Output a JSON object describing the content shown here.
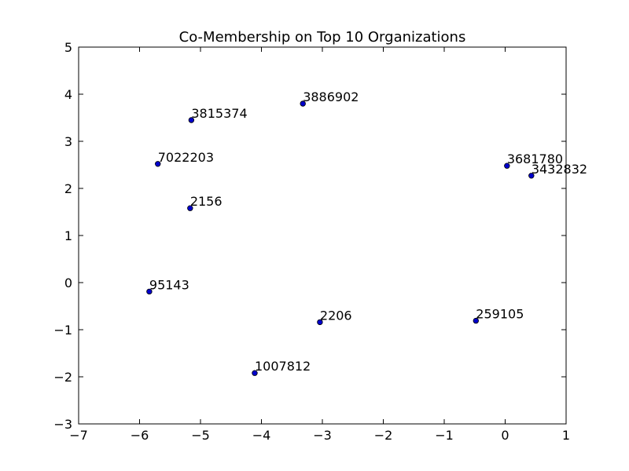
{
  "chart_data": {
    "type": "scatter",
    "title": "Co-Membership on Top 10 Organizations",
    "xlabel": "",
    "ylabel": "",
    "xlim": [
      -7,
      1
    ],
    "ylim": [
      -3,
      5
    ],
    "x_ticks": [
      -7,
      -6,
      -5,
      -4,
      -3,
      -2,
      -1,
      0,
      1
    ],
    "y_ticks": [
      -3,
      -2,
      -1,
      0,
      1,
      2,
      3,
      4,
      5
    ],
    "x_tick_labels": [
      "−7",
      "−6",
      "−5",
      "−4",
      "−3",
      "−2",
      "−1",
      "0",
      "1"
    ],
    "y_tick_labels": [
      "−3",
      "−2",
      "−1",
      "0",
      "1",
      "2",
      "3",
      "4",
      "5"
    ],
    "grid": false,
    "marker_color": "#0000cc",
    "points": [
      {
        "label": "3886902",
        "x": -3.32,
        "y": 3.8
      },
      {
        "label": "3815374",
        "x": -5.15,
        "y": 3.45
      },
      {
        "label": "7022203",
        "x": -5.7,
        "y": 2.52
      },
      {
        "label": "2156",
        "x": -5.17,
        "y": 1.58
      },
      {
        "label": "3681780",
        "x": 0.03,
        "y": 2.48
      },
      {
        "label": "3432832",
        "x": 0.43,
        "y": 2.27
      },
      {
        "label": "95143",
        "x": -5.84,
        "y": -0.19
      },
      {
        "label": "2206",
        "x": -3.04,
        "y": -0.84
      },
      {
        "label": "259105",
        "x": -0.48,
        "y": -0.81
      },
      {
        "label": "1007812",
        "x": -4.11,
        "y": -1.92
      }
    ]
  }
}
